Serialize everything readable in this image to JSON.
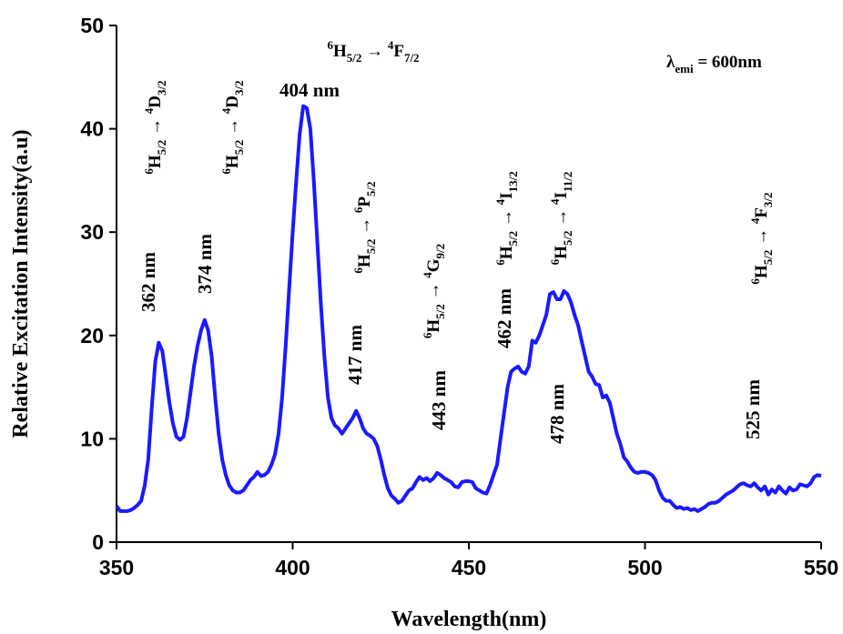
{
  "chart_data": {
    "type": "line",
    "xlabel": "Wavelength(nm)",
    "ylabel": "Relative Excitation Intensity(a.u)",
    "x": [
      350,
      351,
      352,
      353,
      354,
      355,
      356,
      357,
      358,
      359,
      360,
      361,
      362,
      363,
      364,
      365,
      366,
      367,
      368,
      369,
      370,
      371,
      372,
      373,
      374,
      375,
      376,
      377,
      378,
      379,
      380,
      381,
      382,
      383,
      384,
      385,
      386,
      387,
      388,
      389,
      390,
      391,
      392,
      393,
      394,
      395,
      396,
      397,
      398,
      399,
      400,
      401,
      402,
      403,
      404,
      405,
      406,
      407,
      408,
      409,
      410,
      411,
      412,
      413,
      414,
      415,
      416,
      417,
      418,
      419,
      420,
      421,
      422,
      423,
      424,
      425,
      426,
      427,
      428,
      429,
      430,
      431,
      432,
      433,
      434,
      435,
      436,
      437,
      438,
      439,
      440,
      441,
      442,
      443,
      444,
      445,
      446,
      447,
      448,
      449,
      450,
      451,
      452,
      453,
      454,
      455,
      456,
      457,
      458,
      459,
      460,
      461,
      462,
      463,
      464,
      465,
      466,
      467,
      468,
      469,
      470,
      471,
      472,
      473,
      474,
      475,
      476,
      477,
      478,
      479,
      480,
      481,
      482,
      483,
      484,
      485,
      486,
      487,
      488,
      489,
      490,
      491,
      492,
      493,
      494,
      495,
      496,
      497,
      498,
      499,
      500,
      501,
      502,
      503,
      504,
      505,
      506,
      507,
      508,
      509,
      510,
      511,
      512,
      513,
      514,
      515,
      516,
      517,
      518,
      519,
      520,
      521,
      522,
      523,
      524,
      525,
      526,
      527,
      528,
      529,
      530,
      531,
      532,
      533,
      534,
      535,
      536,
      537,
      538,
      539,
      540,
      541,
      542,
      543,
      544,
      545,
      546,
      547,
      548,
      549,
      550
    ],
    "series": [
      {
        "color": "#1a1aff",
        "values": [
          3.5,
          3.0,
          3.0,
          3.0,
          3.1,
          3.3,
          3.6,
          4.0,
          5.5,
          8,
          13,
          17.5,
          19.3,
          18.5,
          16,
          13.5,
          11.5,
          10.2,
          9.9,
          10.2,
          12,
          14.5,
          17,
          19,
          20.5,
          21.5,
          20.5,
          18,
          14,
          10.5,
          8,
          6.5,
          5.5,
          5,
          4.8,
          4.8,
          5.0,
          5.5,
          6,
          6.3,
          6.8,
          6.4,
          6.5,
          6.8,
          7.5,
          8.5,
          10.5,
          14,
          19,
          24.5,
          30,
          35,
          39.5,
          42.2,
          42,
          40,
          35,
          29,
          23,
          18,
          14,
          12,
          11.3,
          11,
          10.5,
          11,
          11.5,
          12,
          12.7,
          12,
          11,
          10.5,
          10.3,
          10,
          9.3,
          8,
          6.5,
          5.2,
          4.5,
          4.2,
          3.8,
          4,
          4.5,
          5,
          5.2,
          5.8,
          6.3,
          6,
          6.2,
          5.9,
          6.2,
          6.7,
          6.5,
          6.2,
          6,
          5.8,
          5.4,
          5.3,
          5.8,
          5.9,
          5.9,
          5.8,
          5.2,
          5,
          4.8,
          4.7,
          5.5,
          6.5,
          7.5,
          10,
          12.5,
          15,
          16.5,
          16.8,
          17,
          16.5,
          16.3,
          17,
          19.5,
          19.3,
          20,
          21,
          22,
          24,
          24.2,
          23.5,
          23.5,
          24.3,
          24,
          23.2,
          22,
          21,
          19.5,
          18,
          16.5,
          16,
          15.3,
          15.2,
          14,
          14.2,
          13.5,
          12,
          10.5,
          9.5,
          8.2,
          7.8,
          7.2,
          6.8,
          6.7,
          6.8,
          6.8,
          6.7,
          6.5,
          6,
          5,
          4.3,
          4,
          4,
          3.6,
          3.3,
          3.4,
          3.2,
          3.3,
          3.1,
          3.2,
          3.0,
          3.2,
          3.4,
          3.7,
          3.8,
          3.8,
          4,
          4.3,
          4.6,
          4.8,
          5,
          5.3,
          5.6,
          5.7,
          5.5,
          5.4,
          5.7,
          5.3,
          5,
          5.4,
          4.6,
          5.1,
          4.8,
          5.4,
          5.0,
          4.7,
          5.3,
          5.0,
          5.1,
          5.6,
          5.5,
          5.4,
          5.7,
          6.3,
          6.5,
          6.4
        ]
      }
    ],
    "xlim": [
      350,
      550
    ],
    "xticks": [
      350,
      400,
      450,
      500,
      550
    ],
    "ylim": [
      0,
      50
    ],
    "yticks": [
      0,
      10,
      20,
      30,
      40,
      50
    ],
    "peak_labels": [
      "362 nm",
      "374 nm",
      "404 nm",
      "417 nm",
      "443 nm",
      "462 nm",
      "478 nm",
      "525 nm"
    ],
    "transitions": [
      [
        {
          "sup": "6"
        },
        {
          "text": "H"
        },
        {
          "sub": "5/2"
        },
        {
          "text": " → "
        },
        {
          "sup": "4"
        },
        {
          "text": "D"
        },
        {
          "sub": "3/2"
        }
      ],
      [
        {
          "sup": "6"
        },
        {
          "text": "H"
        },
        {
          "sub": "5/2"
        },
        {
          "text": " → "
        },
        {
          "sup": "4"
        },
        {
          "text": "D"
        },
        {
          "sub": "3/2"
        }
      ],
      [
        {
          "sup": "6"
        },
        {
          "text": "H"
        },
        {
          "sub": "5/2"
        },
        {
          "text": " → "
        },
        {
          "sup": "4"
        },
        {
          "text": "F"
        },
        {
          "sub": "7/2"
        }
      ],
      [
        {
          "sup": "6"
        },
        {
          "text": "H"
        },
        {
          "sub": "5/2"
        },
        {
          "text": " → "
        },
        {
          "sup": "6"
        },
        {
          "text": "P"
        },
        {
          "sub": "5/2"
        }
      ],
      [
        {
          "sup": "6"
        },
        {
          "text": "H"
        },
        {
          "sub": "5/2"
        },
        {
          "text": " → "
        },
        {
          "sup": "4"
        },
        {
          "text": "G"
        },
        {
          "sub": "9/2"
        }
      ],
      [
        {
          "sup": "6"
        },
        {
          "text": "H"
        },
        {
          "sub": "5/2"
        },
        {
          "text": " → "
        },
        {
          "sup": "4"
        },
        {
          "text": "I"
        },
        {
          "sub": "13/2"
        }
      ],
      [
        {
          "sup": "6"
        },
        {
          "text": "H"
        },
        {
          "sub": "5/2"
        },
        {
          "text": " → "
        },
        {
          "sup": "4"
        },
        {
          "text": "I"
        },
        {
          "sub": "11/2"
        }
      ],
      [
        {
          "sup": "6"
        },
        {
          "text": "H"
        },
        {
          "sub": "5/2"
        },
        {
          "text": " → "
        },
        {
          "sup": "4"
        },
        {
          "text": "F"
        },
        {
          "sub": "3/2"
        }
      ]
    ],
    "emission_label": [
      {
        "text": "λ"
      },
      {
        "sub": "emi"
      },
      {
        "text": " = 600nm"
      }
    ]
  }
}
